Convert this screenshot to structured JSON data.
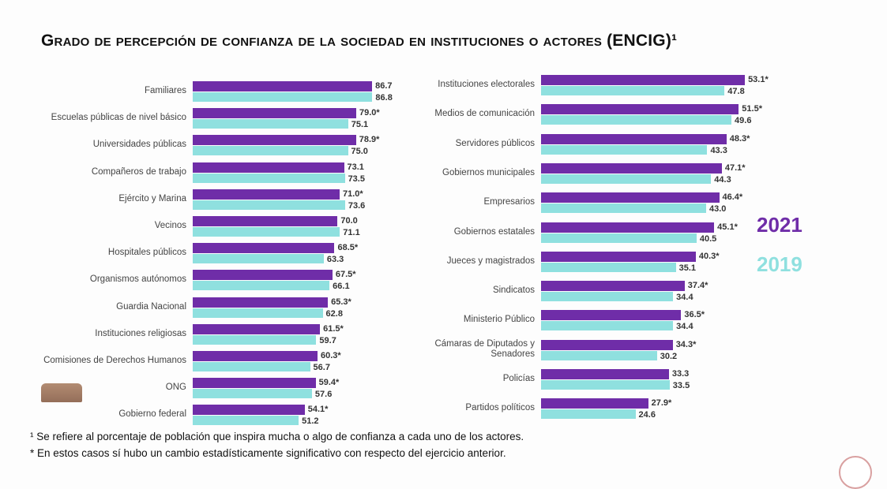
{
  "chart_data": [
    {
      "type": "bar",
      "orientation": "horizontal",
      "title": "Grado de percepción de confianza de la sociedad en instituciones o actores (ENCIG)¹",
      "categories": [
        "Familiares",
        "Escuelas públicas de nivel básico",
        "Universidades públicas",
        "Compañeros de trabajo",
        "Ejército y Marina",
        "Vecinos",
        "Hospitales públicos",
        "Organismos autónomos",
        "Guardia Nacional",
        "Instituciones religiosas",
        "Comisiones de Derechos Humanos",
        "ONG",
        "Gobierno federal"
      ],
      "series": [
        {
          "name": "2021",
          "color": "#6f2da8",
          "values": [
            86.7,
            79.0,
            78.9,
            73.1,
            71.0,
            70.0,
            68.5,
            67.5,
            65.3,
            61.5,
            60.3,
            59.4,
            54.1
          ],
          "labels": [
            "86.7",
            "79.0*",
            "78.9*",
            "73.1",
            "71.0*",
            "70.0",
            "68.5*",
            "67.5*",
            "65.3*",
            "61.5*",
            "60.3*",
            "59.4*",
            "54.1*"
          ]
        },
        {
          "name": "2019",
          "color": "#8fe0df",
          "values": [
            86.8,
            75.1,
            75.0,
            73.5,
            73.6,
            71.1,
            63.3,
            66.1,
            62.8,
            59.7,
            56.7,
            57.6,
            51.2
          ],
          "labels": [
            "86.8",
            "75.1",
            "75.0",
            "73.5",
            "73.6",
            "71.1",
            "63.3",
            "66.1",
            "62.8",
            "59.7",
            "56.7",
            "57.6",
            "51.2"
          ]
        }
      ]
    },
    {
      "type": "bar",
      "orientation": "horizontal",
      "categories": [
        "Instituciones electorales",
        "Medios de comunicación",
        "Servidores públicos",
        "Gobiernos municipales",
        "Empresarios",
        "Gobiernos estatales",
        "Jueces y magistrados",
        "Sindicatos",
        "Ministerio Público",
        "Cámaras de Diputados y Senadores",
        "Policías",
        "Partidos políticos"
      ],
      "series": [
        {
          "name": "2021",
          "color": "#6f2da8",
          "values": [
            53.1,
            51.5,
            48.3,
            47.1,
            46.4,
            45.1,
            40.3,
            37.4,
            36.5,
            34.3,
            33.3,
            27.9
          ],
          "labels": [
            "53.1*",
            "51.5*",
            "48.3*",
            "47.1*",
            "46.4*",
            "45.1*",
            "40.3*",
            "37.4*",
            "36.5*",
            "34.3*",
            "33.3",
            "27.9*"
          ]
        },
        {
          "name": "2019",
          "color": "#8fe0df",
          "values": [
            47.8,
            49.6,
            43.3,
            44.3,
            43.0,
            40.5,
            35.1,
            34.4,
            34.4,
            30.2,
            33.5,
            24.6
          ],
          "labels": [
            "47.8",
            "49.6",
            "43.3",
            "44.3",
            "43.0",
            "40.5",
            "35.1",
            "34.4",
            "34.4",
            "30.2",
            "33.5",
            "24.6"
          ]
        }
      ],
      "legend": [
        "2021",
        "2019"
      ],
      "legend_placement": "right"
    }
  ],
  "footnotes": [
    "¹ Se refiere al porcentaje de población que inspira mucha o algo de confianza a cada uno de los actores.",
    "* En estos casos sí hubo un cambio estadísticamente significativo con respecto del ejercicio anterior."
  ]
}
